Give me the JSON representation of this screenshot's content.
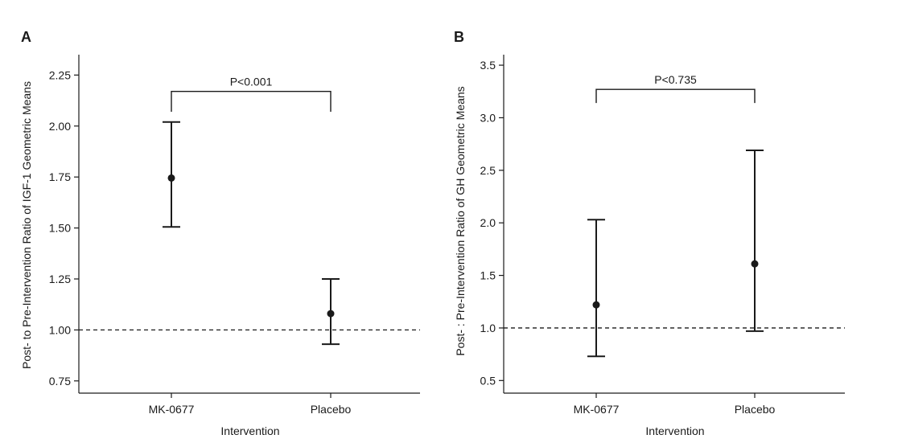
{
  "chart_data": [
    {
      "panel": "A",
      "type": "scatter",
      "style": "point-estimate-with-error-bars",
      "ylabel": "Post- to Pre-Intervention Ratio of IGF-1 Geometric Means",
      "xlabel": "Intervention",
      "categories": [
        "MK-0677",
        "Placebo"
      ],
      "points": [
        {
          "category": "MK-0677",
          "value": 1.745,
          "lower": 1.505,
          "upper": 2.02
        },
        {
          "category": "Placebo",
          "value": 1.08,
          "lower": 0.93,
          "upper": 1.25
        }
      ],
      "ylim": [
        0.69,
        2.35
      ],
      "yticks": [
        0.75,
        1.0,
        1.25,
        1.5,
        1.75,
        2.0,
        2.25
      ],
      "ytick_labels": [
        "0.75",
        "1.00",
        "1.25",
        "1.50",
        "1.75",
        "2.00",
        "2.25"
      ],
      "reference_line": 1.0,
      "significance": {
        "label": "P<0.001",
        "from": "MK-0677",
        "to": "Placebo",
        "y": 2.17,
        "drop": 2.07
      },
      "grid": false
    },
    {
      "panel": "B",
      "type": "scatter",
      "style": "point-estimate-with-error-bars",
      "ylabel": "Post- : Pre-Intervention Ratio of GH Geometric Means",
      "xlabel": "Intervention",
      "categories": [
        "MK-0677",
        "Placebo"
      ],
      "points": [
        {
          "category": "MK-0677",
          "value": 1.22,
          "lower": 0.73,
          "upper": 2.03
        },
        {
          "category": "Placebo",
          "value": 1.61,
          "lower": 0.97,
          "upper": 2.69
        }
      ],
      "ylim": [
        0.38,
        3.6
      ],
      "yticks": [
        0.5,
        1.0,
        1.5,
        2.0,
        2.5,
        3.0,
        3.5
      ],
      "ytick_labels": [
        "0.5",
        "1.0",
        "1.5",
        "2.0",
        "2.5",
        "3.0",
        "3.5"
      ],
      "reference_line": 1.0,
      "significance": {
        "label": "P<0.735",
        "from": "MK-0677",
        "to": "Placebo",
        "y": 3.27,
        "drop": 3.14
      },
      "grid": false
    }
  ]
}
